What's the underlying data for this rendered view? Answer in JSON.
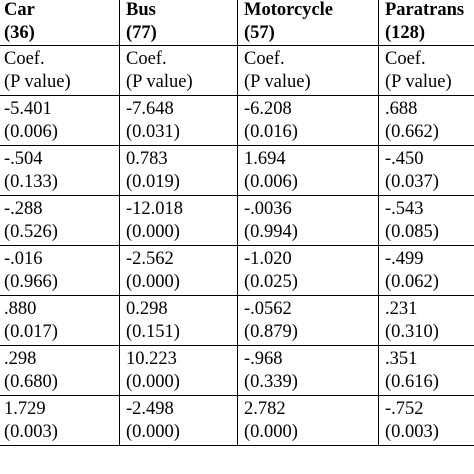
{
  "table": {
    "headers": [
      {
        "name": "Car",
        "n": "(36)"
      },
      {
        "name": "Bus",
        "n": "(77)"
      },
      {
        "name": "Motorcycle",
        "n": "(57)"
      },
      {
        "name": "Paratrans",
        "n": "(128)"
      }
    ],
    "rows": [
      [
        [
          "Coef.",
          "(P value)"
        ],
        [
          "Coef.",
          "(P value)"
        ],
        [
          "Coef.",
          "(P value)"
        ],
        [
          "Coef.",
          "(P value)"
        ]
      ],
      [
        [
          "-5.401",
          "(0.006)"
        ],
        [
          "-7.648",
          "(0.031)"
        ],
        [
          "-6.208",
          "(0.016)"
        ],
        [
          ".688",
          "(0.662)"
        ]
      ],
      [
        [
          "-.504",
          "(0.133)"
        ],
        [
          "0.783",
          "(0.019)"
        ],
        [
          "1.694",
          "(0.006)"
        ],
        [
          "-.450",
          "(0.037)"
        ]
      ],
      [
        [
          "-.288",
          "(0.526)"
        ],
        [
          "-12.018",
          "(0.000)"
        ],
        [
          "-.0036",
          "(0.994)"
        ],
        [
          "-.543",
          "(0.085)"
        ]
      ],
      [
        [
          "-.016",
          "(0.966)"
        ],
        [
          "-2.562",
          "(0.000)"
        ],
        [
          "-1.020",
          "(0.025)"
        ],
        [
          "-.499",
          "(0.062)"
        ]
      ],
      [
        [
          ".880",
          "(0.017)"
        ],
        [
          "0.298",
          "(0.151)"
        ],
        [
          "-.0562",
          "(0.879)"
        ],
        [
          ".231",
          "(0.310)"
        ]
      ],
      [
        [
          ".298",
          "(0.680)"
        ],
        [
          "10.223",
          "(0.000)"
        ],
        [
          "-.968",
          "(0.339)"
        ],
        [
          ".351",
          "(0.616)"
        ]
      ],
      [
        [
          "1.729",
          "(0.003)"
        ],
        [
          "-2.498",
          "(0.000)"
        ],
        [
          "2.782",
          "(0.000)"
        ],
        [
          "-.752",
          "(0.003)"
        ]
      ]
    ]
  }
}
